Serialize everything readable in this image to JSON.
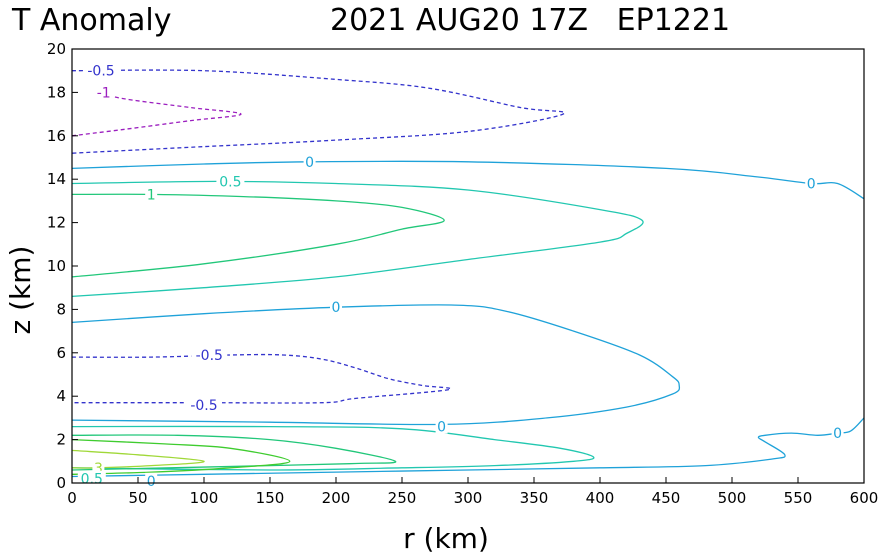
{
  "chart_data": {
    "type": "contour",
    "title_left": "T Anomaly",
    "title_right": "2021 AUG20 17Z   EP1221",
    "xlabel": "r (km)",
    "ylabel": "z (km)",
    "xlim": [
      0,
      600
    ],
    "ylim": [
      0,
      20
    ],
    "xticks": [
      "0",
      "50",
      "100",
      "150",
      "200",
      "250",
      "300",
      "350",
      "400",
      "450",
      "500",
      "550",
      "600"
    ],
    "yticks": [
      "0",
      "2",
      "4",
      "6",
      "8",
      "10",
      "12",
      "14",
      "16",
      "18",
      "20"
    ],
    "grid": false,
    "legend": "none",
    "contours": [
      {
        "level": "-1",
        "color": "#9b1fbf",
        "dashed": true,
        "points": [
          [
            0,
            16
          ],
          [
            40,
            16.3
          ],
          [
            90,
            16.7
          ],
          [
            128,
            17
          ],
          [
            90,
            17.3
          ],
          [
            40,
            17.7
          ],
          [
            20,
            18
          ]
        ]
      },
      {
        "level": "-0.5",
        "color": "#3333cc",
        "dashed": true,
        "points": [
          [
            0,
            19
          ],
          [
            100,
            19
          ],
          [
            200,
            18.6
          ],
          [
            270,
            18.2
          ],
          [
            340,
            17.3
          ],
          [
            372,
            17
          ],
          [
            300,
            16.2
          ],
          [
            200,
            15.8
          ],
          [
            100,
            15.5
          ],
          [
            0,
            15.2
          ]
        ]
      },
      {
        "level": "0",
        "color": "#1fa2d9",
        "dashed": false,
        "points": [
          [
            0,
            14.5
          ],
          [
            100,
            14.7
          ],
          [
            180,
            14.8
          ],
          [
            300,
            14.8
          ],
          [
            450,
            14.5
          ],
          [
            520,
            14.1
          ],
          [
            560,
            13.8
          ],
          [
            580,
            13.8
          ],
          [
            600,
            13.1
          ]
        ]
      },
      {
        "level": "0.5",
        "color": "#22c7b0",
        "dashed": false,
        "points": [
          [
            0,
            13.8
          ],
          [
            110,
            13.9
          ],
          [
            200,
            13.8
          ],
          [
            300,
            13.5
          ],
          [
            400,
            12.6
          ],
          [
            432,
            12.1
          ],
          [
            420,
            11.5
          ],
          [
            400,
            11.1
          ],
          [
            300,
            10.3
          ],
          [
            200,
            9.5
          ],
          [
            100,
            9
          ],
          [
            0,
            8.6
          ]
        ]
      },
      {
        "level": "1",
        "color": "#22c77a",
        "dashed": false,
        "points": [
          [
            0,
            13.3
          ],
          [
            60,
            13.3
          ],
          [
            130,
            13.2
          ],
          [
            200,
            13
          ],
          [
            250,
            12.7
          ],
          [
            282,
            12.1
          ],
          [
            250,
            11.7
          ],
          [
            200,
            11
          ],
          [
            100,
            10.1
          ],
          [
            0,
            9.5
          ]
        ]
      },
      {
        "level": "0",
        "color": "#1fa2d9",
        "dashed": false,
        "points": [
          [
            0,
            7.4
          ],
          [
            100,
            7.8
          ],
          [
            200,
            8.1
          ],
          [
            290,
            8.2
          ],
          [
            330,
            7.9
          ],
          [
            380,
            7
          ],
          [
            430,
            5.9
          ],
          [
            455,
            4.9
          ],
          [
            460,
            4.5
          ],
          [
            455,
            4.1
          ],
          [
            420,
            3.5
          ],
          [
            360,
            3
          ],
          [
            280,
            2.7
          ],
          [
            150,
            2.8
          ],
          [
            0,
            2.9
          ]
        ]
      },
      {
        "level": "-0.5",
        "color": "#3333cc",
        "dashed": true,
        "points": [
          [
            0,
            5.8
          ],
          [
            60,
            5.8
          ],
          [
            120,
            5.9
          ],
          [
            160,
            5.9
          ],
          [
            190,
            5.7
          ],
          [
            215,
            5.3
          ],
          [
            240,
            4.8
          ],
          [
            265,
            4.5
          ],
          [
            285,
            4.3
          ],
          [
            215,
            3.9
          ],
          [
            190,
            3.7
          ],
          [
            100,
            3.7
          ],
          [
            0,
            3.7
          ]
        ]
      },
      {
        "level": "0.5",
        "color": "#22c7b0",
        "dashed": false,
        "points": [
          [
            0,
            2.6
          ],
          [
            150,
            2.6
          ],
          [
            250,
            2.5
          ],
          [
            320,
            2
          ],
          [
            370,
            1.6
          ],
          [
            395,
            1.2
          ],
          [
            380,
            1
          ],
          [
            320,
            0.8
          ],
          [
            250,
            0.7
          ],
          [
            150,
            0.6
          ],
          [
            0,
            0.7
          ]
        ]
      },
      {
        "level": "1",
        "color": "#22c77a",
        "dashed": false,
        "points": [
          [
            0,
            2.2
          ],
          [
            80,
            2.2
          ],
          [
            150,
            2
          ],
          [
            200,
            1.6
          ],
          [
            245,
            1
          ],
          [
            215,
            0.9
          ],
          [
            150,
            0.8
          ],
          [
            0,
            0.6
          ]
        ]
      },
      {
        "level": "2",
        "color": "#3fcc2f",
        "dashed": false,
        "points": [
          [
            0,
            2
          ],
          [
            70,
            1.8
          ],
          [
            120,
            1.6
          ],
          [
            165,
            1
          ],
          [
            120,
            0.7
          ],
          [
            60,
            0.5
          ],
          [
            0,
            0.4
          ]
        ]
      },
      {
        "level": "3",
        "color": "#a0d838",
        "dashed": false,
        "points": [
          [
            0,
            1.5
          ],
          [
            50,
            1.3
          ],
          [
            100,
            1
          ],
          [
            60,
            0.8
          ],
          [
            20,
            0.7
          ],
          [
            0,
            0.7
          ]
        ]
      },
      {
        "level": "0",
        "color": "#1fa2d9",
        "dashed": false,
        "points": [
          [
            0,
            0.3
          ],
          [
            100,
            0.4
          ],
          [
            200,
            0.5
          ],
          [
            300,
            0.6
          ],
          [
            400,
            0.7
          ],
          [
            480,
            0.8
          ],
          [
            530,
            1.1
          ],
          [
            540,
            1.3
          ],
          [
            525,
            1.9
          ],
          [
            520,
            2.1
          ],
          [
            525,
            2.2
          ],
          [
            545,
            2.3
          ],
          [
            565,
            2.2
          ],
          [
            580,
            2.3
          ],
          [
            590,
            2.4
          ],
          [
            600,
            3
          ]
        ]
      }
    ],
    "contour_labels": [
      {
        "text": "-0.5",
        "color": "#3333cc",
        "x": 22,
        "y": 19
      },
      {
        "text": "-1",
        "color": "#9b1fbf",
        "x": 24,
        "y": 18
      },
      {
        "text": "0",
        "color": "#1fa2d9",
        "x": 180,
        "y": 14.8
      },
      {
        "text": "0",
        "color": "#1fa2d9",
        "x": 560,
        "y": 13.8
      },
      {
        "text": "0.5",
        "color": "#22c7b0",
        "x": 120,
        "y": 13.9
      },
      {
        "text": "1",
        "color": "#22c77a",
        "x": 60,
        "y": 13.3
      },
      {
        "text": "0",
        "color": "#1fa2d9",
        "x": 200,
        "y": 8.1
      },
      {
        "text": "-0.5",
        "color": "#3333cc",
        "x": 104,
        "y": 5.9
      },
      {
        "text": "-0.5",
        "color": "#3333cc",
        "x": 100,
        "y": 3.6
      },
      {
        "text": "0",
        "color": "#1fa2d9",
        "x": 280,
        "y": 2.6
      },
      {
        "text": "0",
        "color": "#1fa2d9",
        "x": 580,
        "y": 2.3
      },
      {
        "text": "3",
        "color": "#a0d838",
        "x": 20,
        "y": 0.7
      },
      {
        "text": "0",
        "color": "#1fa2d9",
        "x": 60,
        "y": 0.1
      },
      {
        "text": "0.5",
        "color": "#22c7b0",
        "x": 15,
        "y": 0.2
      }
    ]
  }
}
